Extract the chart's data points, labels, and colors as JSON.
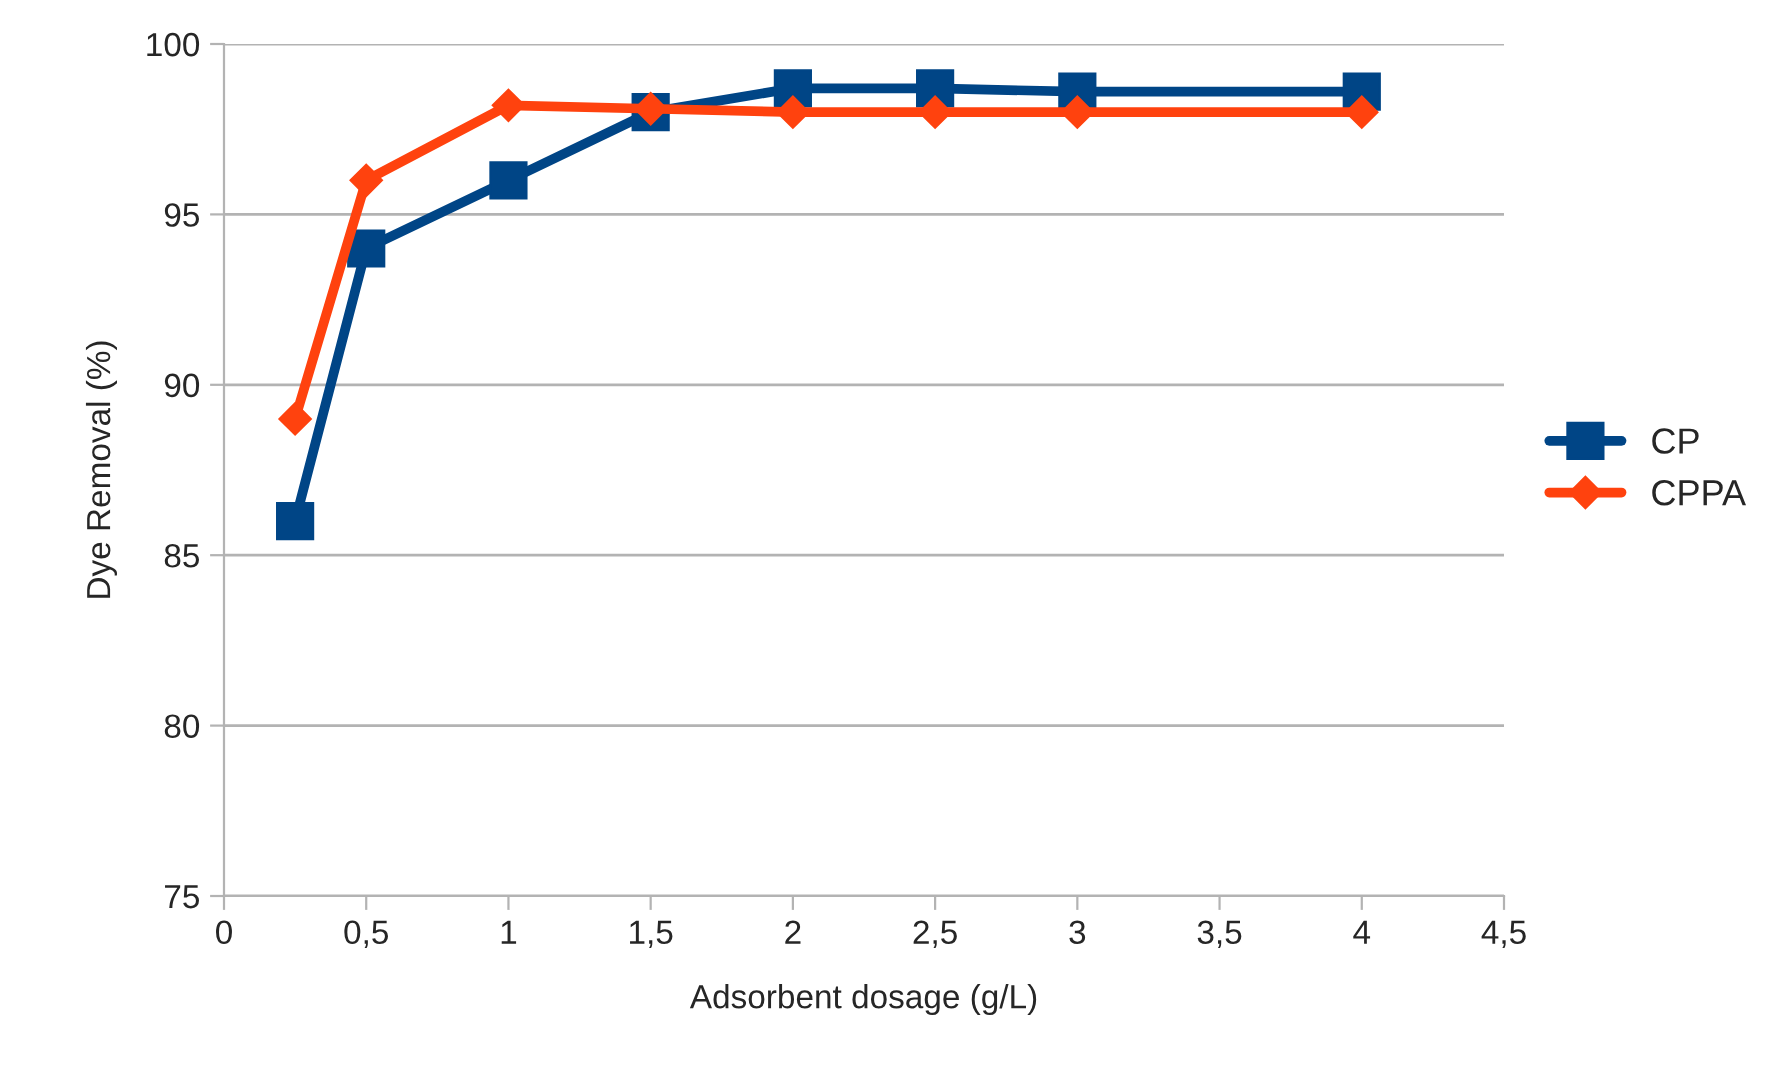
{
  "chart_data": {
    "type": "line",
    "xlabel": "Adsorbent dosage (g/L)",
    "ylabel": "Dye Removal (%)",
    "x": [
      0.25,
      0.5,
      1,
      1.5,
      2,
      2.5,
      3,
      4
    ],
    "series": [
      {
        "name": "CP",
        "color": "#004586",
        "marker": "square",
        "values": [
          86,
          94,
          96,
          98,
          98.7,
          98.7,
          98.6,
          98.6
        ]
      },
      {
        "name": "CPPA",
        "color": "#ff420e",
        "marker": "diamond",
        "values": [
          89,
          96,
          98.2,
          98.1,
          98,
          98,
          98,
          98
        ]
      }
    ],
    "xlim": [
      0,
      4.5
    ],
    "xticks": [
      0,
      {
        "value": 0.5,
        "label": "0,5"
      },
      1,
      {
        "value": 1.5,
        "label": "1,5"
      },
      2,
      {
        "value": 2.5,
        "label": "2,5"
      },
      3,
      {
        "value": 3.5,
        "label": "3,5"
      },
      4,
      {
        "value": 4.5,
        "label": "4,5"
      }
    ],
    "ylim": [
      75,
      100
    ],
    "yticks": [
      75,
      80,
      85,
      90,
      95,
      100
    ],
    "grid": "y",
    "legend": "right",
    "line_style": "solid"
  }
}
